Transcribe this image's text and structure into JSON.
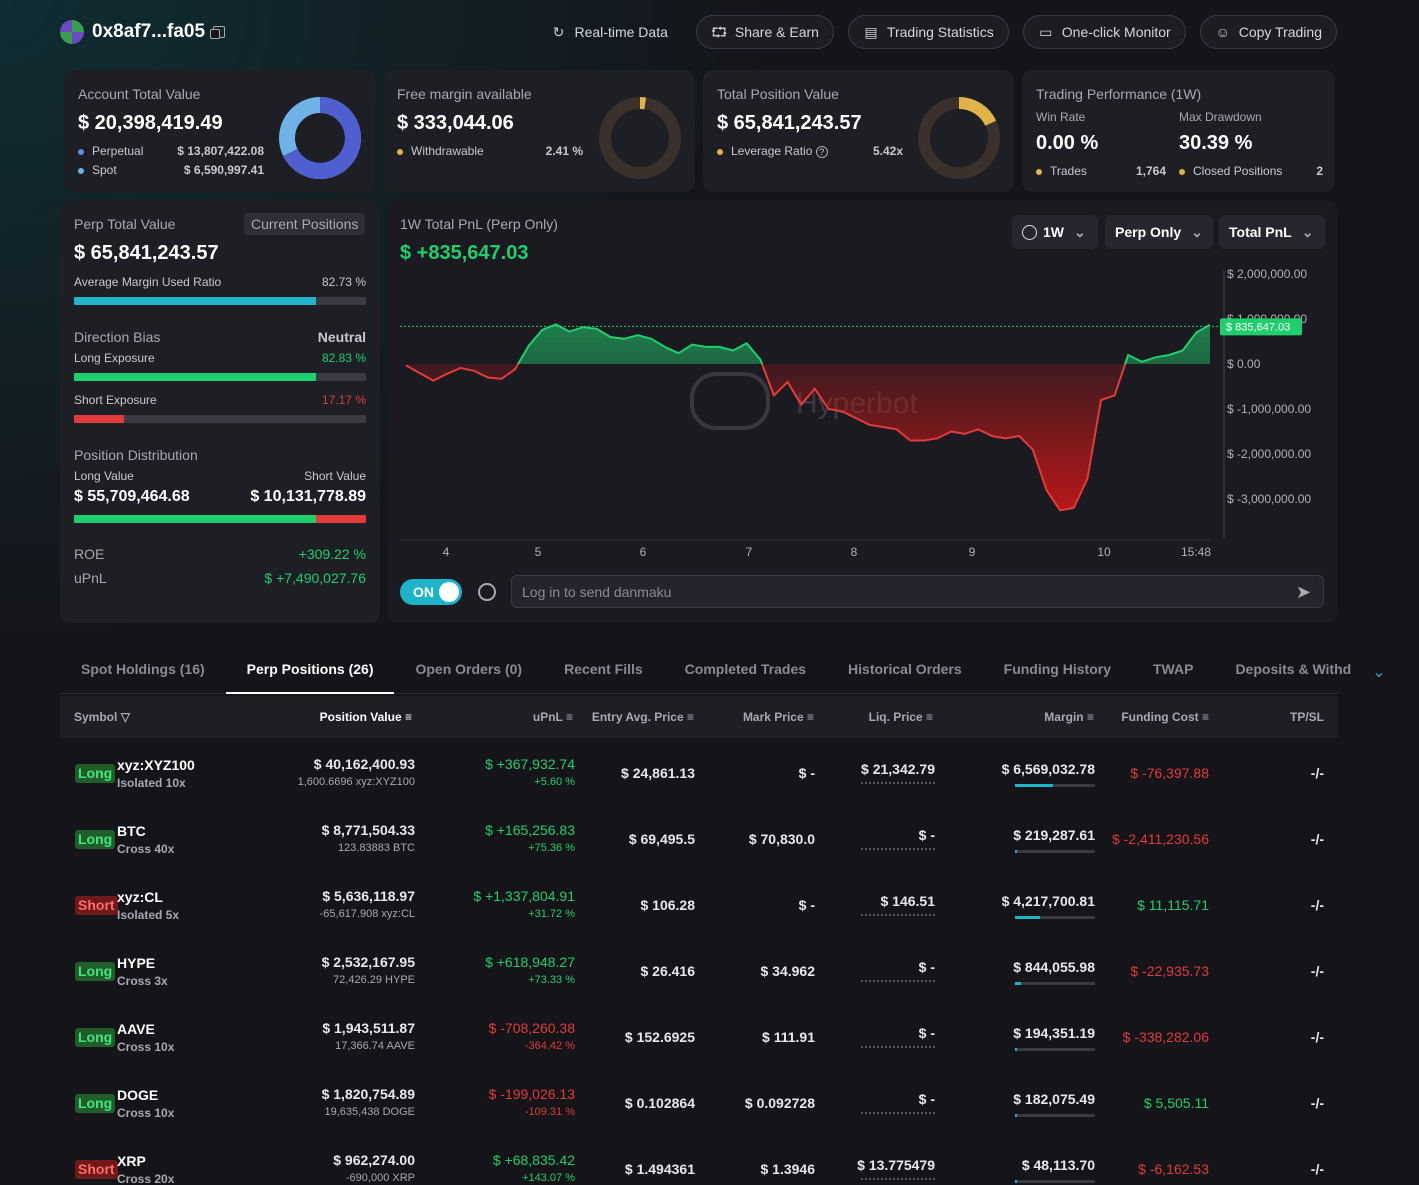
{
  "header": {
    "address": "0x8af7...fa05",
    "buttons": [
      "Real-time Data",
      "Share & Earn",
      "Trading Statistics",
      "One-click Monitor",
      "Copy Trading"
    ]
  },
  "cards": {
    "account": {
      "label": "Account Total Value",
      "value": "$ 20,398,419.49",
      "perp_label": "Perpetual",
      "perp_value": "$ 13,807,422.08",
      "spot_label": "Spot",
      "spot_value": "$ 6,590,997.41",
      "perp_fraction": 0.677
    },
    "margin": {
      "label": "Free margin available",
      "value": "$ 333,044.06",
      "sub_label": "Withdrawable",
      "sub_value": "2.41 %",
      "fraction": 0.024
    },
    "position": {
      "label": "Total Position Value",
      "value": "$ 65,841,243.57",
      "sub_label": "Leverage Ratio",
      "sub_value": "5.42x",
      "fraction": 0.18
    },
    "performance": {
      "label": "Trading Performance (1W)",
      "win_label": "Win Rate",
      "win_value": "0.00 %",
      "dd_label": "Max Drawdown",
      "dd_value": "30.39 %",
      "trades_label": "Trades",
      "trades_value": "1,764",
      "closed_label": "Closed Positions",
      "closed_value": "2"
    }
  },
  "perp": {
    "label": "Perp Total Value",
    "badge": "Current Positions",
    "value": "$ 65,841,243.57",
    "amur_label": "Average Margin Used Ratio",
    "amur_value": "82.73 %",
    "amur_fraction": 0.8273,
    "bias_label": "Direction Bias",
    "bias_value": "Neutral",
    "long_label": "Long Exposure",
    "long_value": "82.83 %",
    "long_fraction": 0.8283,
    "short_label": "Short Exposure",
    "short_value": "17.17 %",
    "short_fraction": 0.1717,
    "dist_label": "Position Distribution",
    "long_val_label": "Long Value",
    "short_val_label": "Short Value",
    "long_val": "$ 55,709,464.68",
    "short_val": "$ 10,131,778.89",
    "roe_label": "ROE",
    "roe_value": "+309.22 %",
    "upnl_label": "uPnL",
    "upnl_value": "$ +7,490,027.76"
  },
  "chart_panel": {
    "title": "1W Total PnL (Perp Only)",
    "value": "$ +835,647.03",
    "dd1": "1W",
    "dd2": "Perp Only",
    "dd3": "Total PnL",
    "watermark": "Hyperbot",
    "toggle": "ON",
    "danmaku_placeholder": "Log in to send danmaku",
    "current_label": "$ 835,647.03"
  },
  "chart_data": {
    "type": "area",
    "title": "",
    "xlabel": "",
    "ylabel": "",
    "x_ticks": [
      "4",
      "5",
      "6",
      "7",
      "8",
      "9",
      "10",
      "15:48"
    ],
    "y_ticks": [
      "$ 2,000,000.00",
      "$ 1,000,000.00",
      "$ 0.00",
      "$ -1,000,000.00",
      "$ -2,000,000.00",
      "$ -3,000,000.00"
    ],
    "ylim": [
      -3400000,
      2200000
    ],
    "current_value": 835647.03,
    "values": [
      -30000,
      -200000,
      -370000,
      -220000,
      -90000,
      -150000,
      -300000,
      -330000,
      -120000,
      400000,
      760000,
      880000,
      720000,
      820000,
      780000,
      600000,
      560000,
      640000,
      560000,
      380000,
      240000,
      430000,
      380000,
      380000,
      300000,
      460000,
      100000,
      -700000,
      -400000,
      -900000,
      -550000,
      -1000000,
      -1050000,
      -1200000,
      -1350000,
      -1400000,
      -1450000,
      -1700000,
      -1700000,
      -1650000,
      -1500000,
      -1550000,
      -1450000,
      -1600000,
      -1650000,
      -1600000,
      -1900000,
      -2800000,
      -3250000,
      -3200000,
      -2550000,
      -800000,
      -700000,
      200000,
      50000,
      150000,
      200000,
      300000,
      700000,
      870000
    ]
  },
  "tabs": [
    "Spot Holdings (16)",
    "Perp Positions (26)",
    "Open Orders (0)",
    "Recent Fills",
    "Completed Trades",
    "Historical Orders",
    "Funding History",
    "TWAP",
    "Deposits & Withd"
  ],
  "table": {
    "headers": [
      "Symbol",
      "Position Value",
      "uPnL",
      "Entry Avg. Price",
      "Mark Price",
      "Liq. Price",
      "Margin",
      "Funding Cost",
      "TP/SL"
    ],
    "rows": [
      {
        "side": "Long",
        "symbol": "xyz:XYZ100",
        "lev": "Isolated 10x",
        "value": "$ 40,162,400.93",
        "size": "1,600.6696 xyz:XYZ100",
        "upnl": "$ +367,932.74",
        "upnl_pct": "+5.60 %",
        "entry": "$ 24,861.13",
        "mark": "$ -",
        "liq": "$ 21,342.79",
        "margin": "$ 6,569,032.78",
        "margin_fraction": 0.48,
        "funding": "$ -76,397.88",
        "tpsl": "-/-",
        "pos": true,
        "fpos": false
      },
      {
        "side": "Long",
        "symbol": "BTC",
        "lev": "Cross 40x",
        "value": "$ 8,771,504.33",
        "size": "123.83883 BTC",
        "upnl": "$ +165,256.83",
        "upnl_pct": "+75.36 %",
        "entry": "$ 69,495.5",
        "mark": "$ 70,830.0",
        "liq": "$ -",
        "margin": "$ 219,287.61",
        "margin_fraction": 0.02,
        "funding": "$ -2,411,230.56",
        "tpsl": "-/-",
        "pos": true,
        "fpos": false
      },
      {
        "side": "Short",
        "symbol": "xyz:CL",
        "lev": "Isolated 5x",
        "value": "$ 5,636,118.97",
        "size": "-65,617.908 xyz:CL",
        "upnl": "$ +1,337,804.91",
        "upnl_pct": "+31.72 %",
        "entry": "$ 106.28",
        "mark": "$ -",
        "liq": "$ 146.51",
        "margin": "$ 4,217,700.81",
        "margin_fraction": 0.31,
        "funding": "$ 11,115.71",
        "tpsl": "-/-",
        "pos": true,
        "fpos": true
      },
      {
        "side": "Long",
        "symbol": "HYPE",
        "lev": "Cross 3x",
        "value": "$ 2,532,167.95",
        "size": "72,426.29 HYPE",
        "upnl": "$ +618,948.27",
        "upnl_pct": "+73.33 %",
        "entry": "$ 26.416",
        "mark": "$ 34.962",
        "liq": "$ -",
        "margin": "$ 844,055.98",
        "margin_fraction": 0.07,
        "funding": "$ -22,935.73",
        "tpsl": "-/-",
        "pos": true,
        "fpos": false
      },
      {
        "side": "Long",
        "symbol": "AAVE",
        "lev": "Cross 10x",
        "value": "$ 1,943,511.87",
        "size": "17,366.74 AAVE",
        "upnl": "$ -708,260.38",
        "upnl_pct": "-364.42 %",
        "entry": "$ 152.6925",
        "mark": "$ 111.91",
        "liq": "$ -",
        "margin": "$ 194,351.19",
        "margin_fraction": 0.02,
        "funding": "$ -338,282.06",
        "tpsl": "-/-",
        "pos": false,
        "fpos": false
      },
      {
        "side": "Long",
        "symbol": "DOGE",
        "lev": "Cross 10x",
        "value": "$ 1,820,754.89",
        "size": "19,635,438 DOGE",
        "upnl": "$ -199,026.13",
        "upnl_pct": "-109.31 %",
        "entry": "$ 0.102864",
        "mark": "$ 0.092728",
        "liq": "$ -",
        "margin": "$ 182,075.49",
        "margin_fraction": 0.02,
        "funding": "$ 5,505.11",
        "tpsl": "-/-",
        "pos": false,
        "fpos": true
      },
      {
        "side": "Short",
        "symbol": "XRP",
        "lev": "Cross 20x",
        "value": "$ 962,274.00",
        "size": "-690,000 XRP",
        "upnl": "$ +68,835.42",
        "upnl_pct": "+143.07 %",
        "entry": "$ 1.494361",
        "mark": "$ 1.3946",
        "liq": "$ 13.775479",
        "margin": "$ 48,113.70",
        "margin_fraction": 0.02,
        "funding": "$ -6,162.53",
        "tpsl": "-/-",
        "pos": true,
        "fpos": false
      }
    ]
  }
}
